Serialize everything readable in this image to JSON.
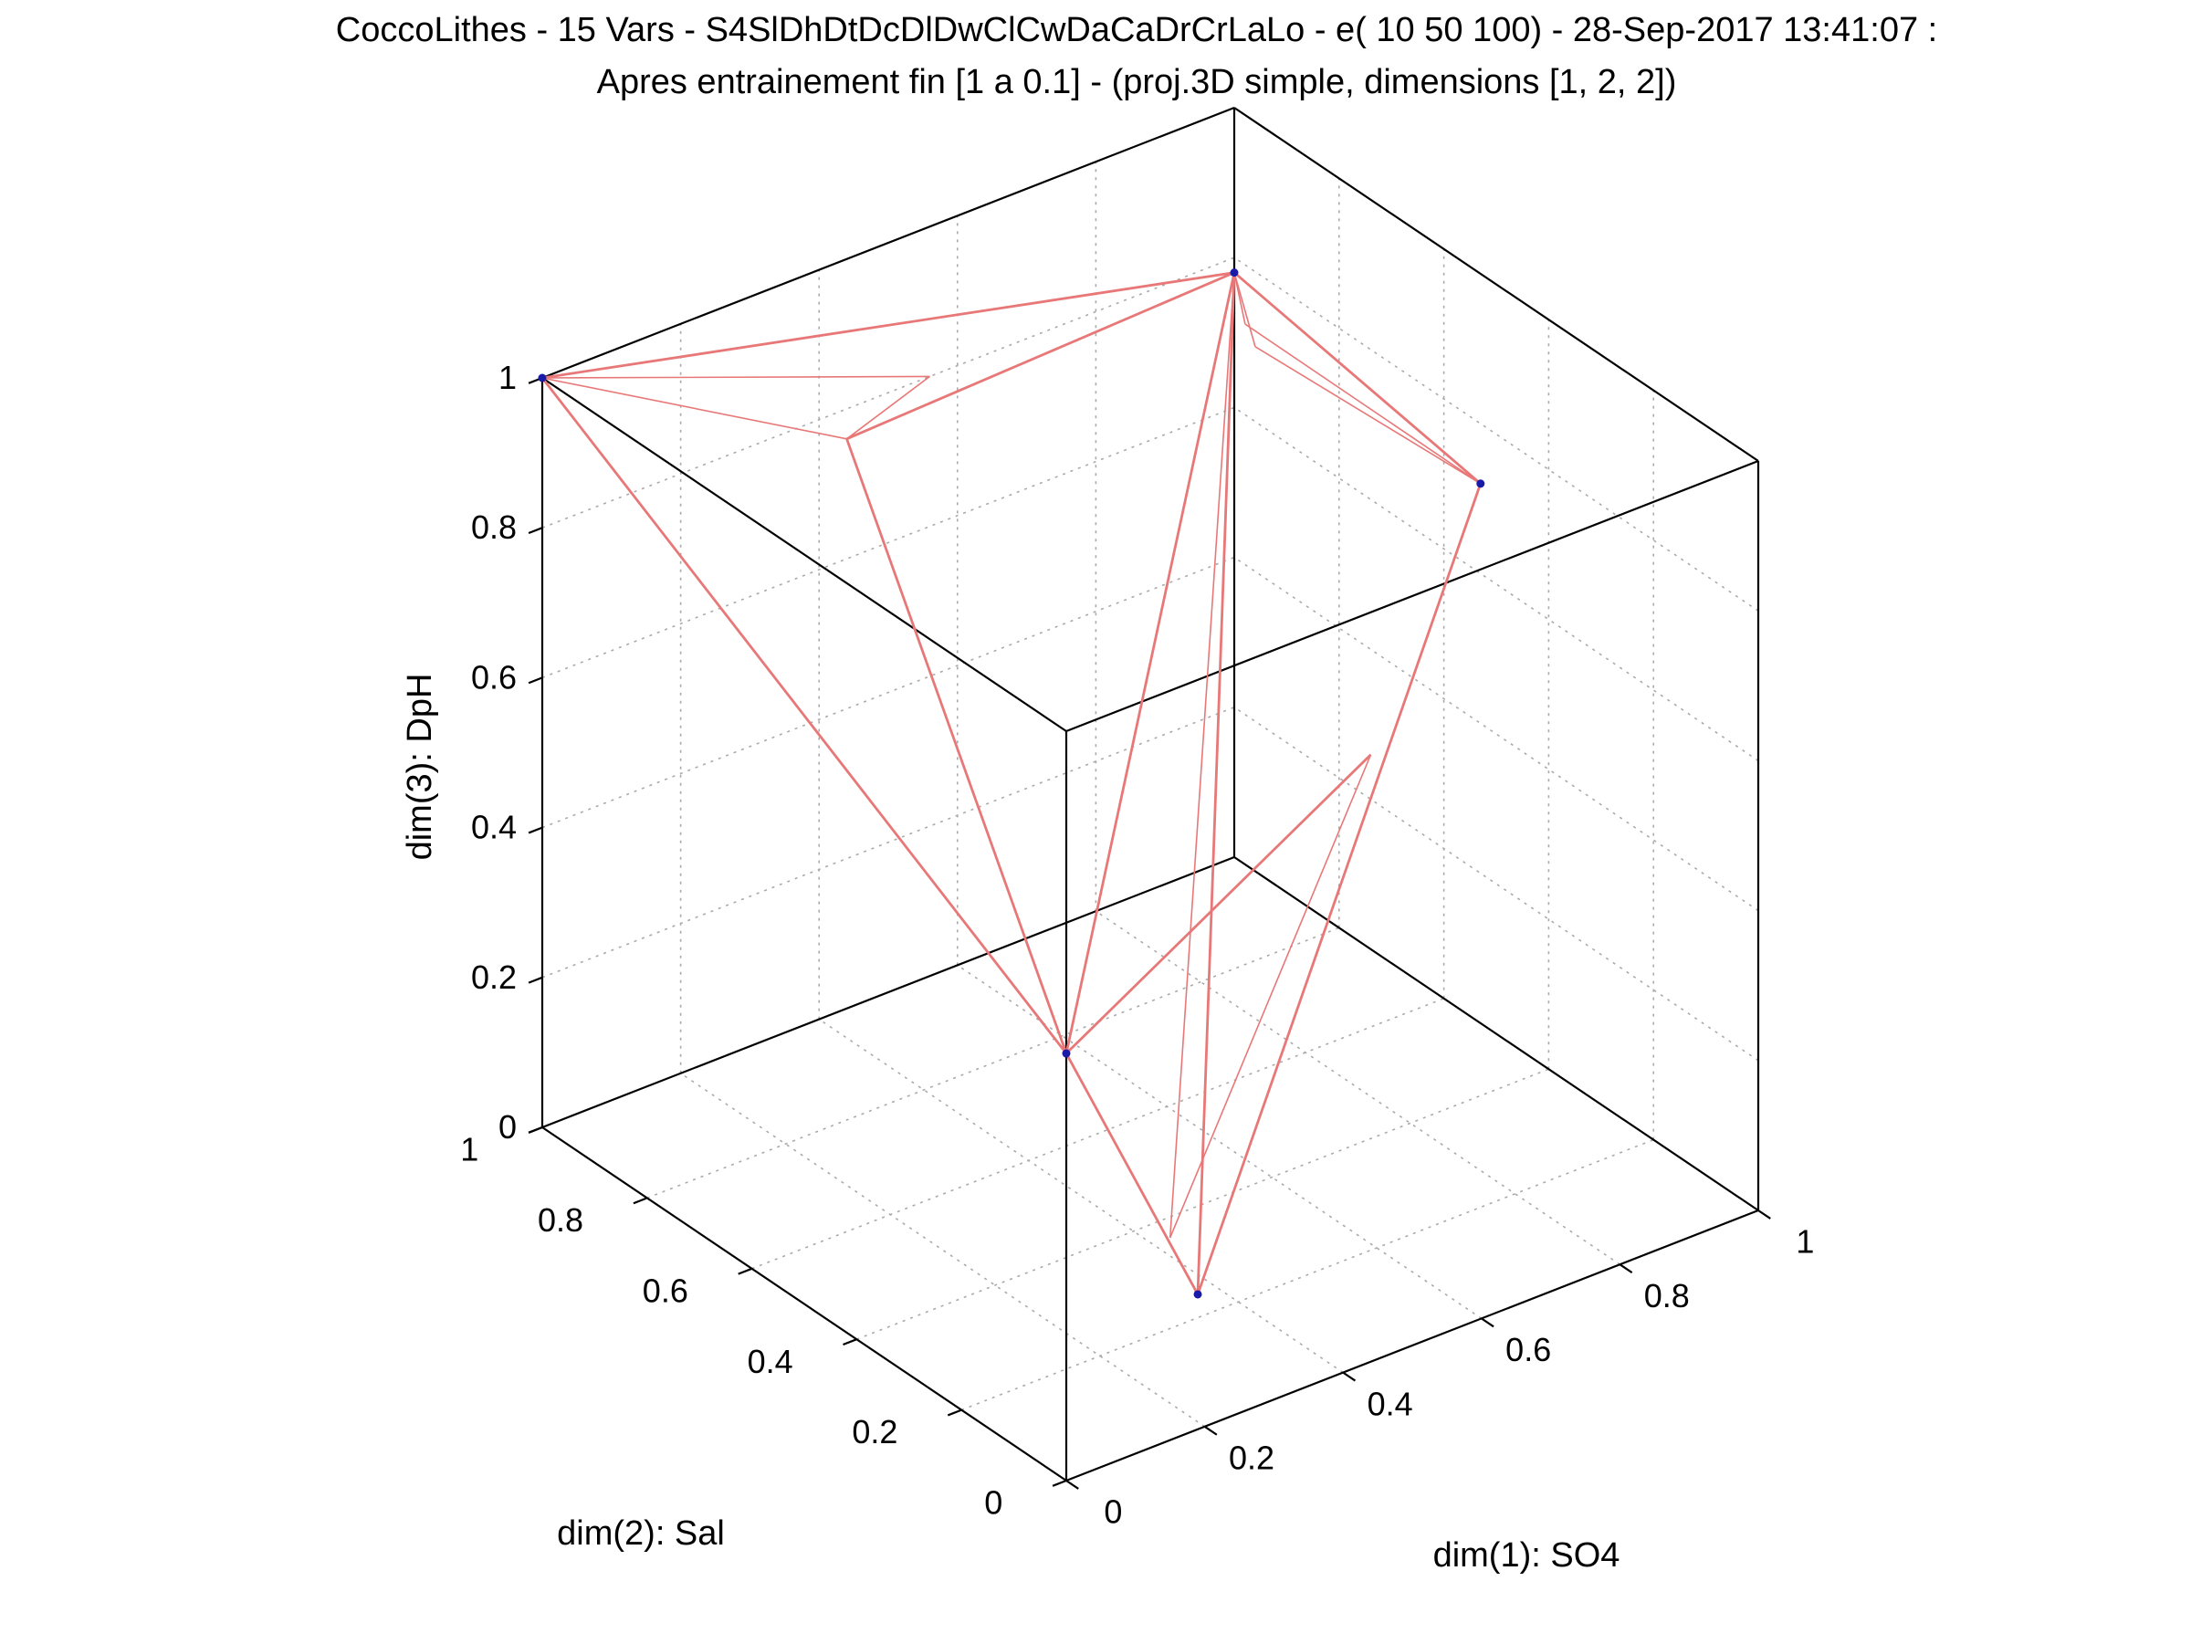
{
  "title_lines": [
    "CoccoLithes - 15 Vars - S4SlDhDtDcDlDwClCwDaCaDrCrLaLo - e( 10 50 100) - 28-Sep-2017 13:41:07 :",
    "Apres entrainement fin [1 a 0.1] - (proj.3D simple, dimensions [1, 2, 2])"
  ],
  "chart_data": {
    "type": "scatter",
    "projection": "3d",
    "title": "CoccoLithes - 15 Vars - S4SlDhDtDcDlDwClCwDaCaDrCrLaLo - e( 10 50 100) - 28-Sep-2017 13:41:07 : Apres entrainement fin [1 a 0.1] - (proj.3D simple, dimensions [1, 2, 2])",
    "xlabel": "dim(1): SO4",
    "ylabel": "dim(2): Sal",
    "zlabel": "dim(3): DpH",
    "xlim": [
      0,
      1
    ],
    "ylim": [
      0,
      1
    ],
    "zlim": [
      0,
      1
    ],
    "x_ticks": [
      "0",
      "0.2",
      "0.4",
      "0.6",
      "0.8",
      "1"
    ],
    "y_ticks": [
      "0",
      "0.2",
      "0.4",
      "0.6",
      "0.8",
      "1"
    ],
    "z_ticks": [
      "0",
      "0.2",
      "0.4",
      "0.6",
      "0.8",
      "1"
    ],
    "grid": true,
    "legend": "none",
    "colors": {
      "edges": "#e87878",
      "nodes": "#1a1aa8",
      "axes": "#000000",
      "grid": "#aaaaaa"
    },
    "nodes": [
      {
        "id": "n0",
        "x": 0.0,
        "y": 1.0,
        "z": 1.0
      },
      {
        "id": "n1",
        "x": 0.0,
        "y": 0.0,
        "z": 0.57
      },
      {
        "id": "n2",
        "x": 1.0,
        "y": 1.0,
        "z": 0.78
      },
      {
        "id": "n3",
        "x": 0.19,
        "y": 0.0,
        "z": 0.18
      },
      {
        "id": "n4",
        "x": 1.0,
        "y": 0.53,
        "z": 0.72
      }
    ],
    "aux": [
      {
        "id": "a1",
        "x": 0.56,
        "y": 1.0,
        "z": 0.8
      },
      {
        "id": "a2",
        "x": 0.44,
        "y": 1.0,
        "z": 0.76
      },
      {
        "id": "a3",
        "x": 0.15,
        "y": 0.0,
        "z": 0.27
      },
      {
        "id": "a4",
        "x": 0.94,
        "y": 0.9,
        "z": 0.78
      },
      {
        "id": "a5",
        "x": 0.44,
        "y": 0.0,
        "z": 0.81
      },
      {
        "id": "a6",
        "x": 1.0,
        "y": 0.96,
        "z": 0.7
      }
    ],
    "edges": [
      {
        "from": "n0",
        "to": "n2",
        "w": "thick"
      },
      {
        "from": "n0",
        "to": "a1",
        "w": "thin"
      },
      {
        "from": "n0",
        "to": "a2",
        "w": "thin"
      },
      {
        "from": "a1",
        "to": "a2",
        "w": "thin"
      },
      {
        "from": "n0",
        "to": "n1",
        "w": "thick"
      },
      {
        "from": "a2",
        "to": "n2",
        "w": "thick"
      },
      {
        "from": "a2",
        "to": "n1",
        "w": "thick"
      },
      {
        "from": "n2",
        "to": "n4",
        "w": "thick"
      },
      {
        "from": "n2",
        "to": "n1",
        "w": "thick"
      },
      {
        "from": "n2",
        "to": "a4",
        "w": "thin"
      },
      {
        "from": "n2",
        "to": "a6",
        "w": "thin"
      },
      {
        "from": "a6",
        "to": "n4",
        "w": "thin"
      },
      {
        "from": "n4",
        "to": "a4",
        "w": "thin"
      },
      {
        "from": "n4",
        "to": "n3",
        "w": "thick"
      },
      {
        "from": "n2",
        "to": "n3",
        "w": "thick"
      },
      {
        "from": "n2",
        "to": "a3",
        "w": "thin"
      },
      {
        "from": "a3",
        "to": "a5",
        "w": "thin"
      },
      {
        "from": "n1",
        "to": "n3",
        "w": "thick"
      },
      {
        "from": "n1",
        "to": "a5",
        "w": "thick"
      }
    ]
  }
}
